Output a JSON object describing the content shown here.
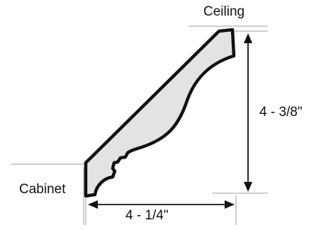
{
  "labels": {
    "ceiling": "Ceiling",
    "cabinet": "Cabinet",
    "height": "4 - 3/8\"",
    "width": "4 - 1/4\""
  },
  "colors": {
    "profile_fill": "#e2e3e5",
    "profile_stroke": "#111111",
    "guide_line": "#bdbdbd",
    "dimension_line": "#111111"
  }
}
